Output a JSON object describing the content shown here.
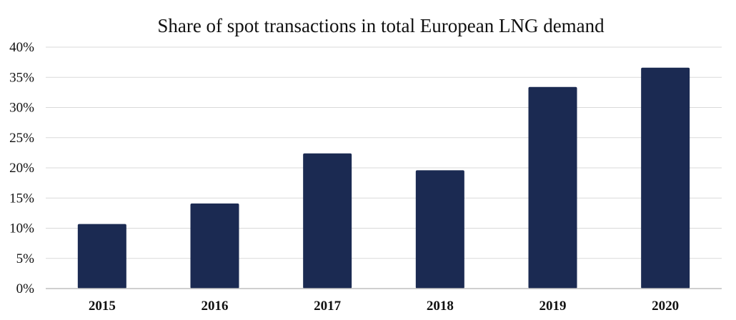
{
  "chart_data": {
    "type": "bar",
    "title": "Share of spot transactions in total European LNG demand",
    "xlabel": "",
    "ylabel": "",
    "categories": [
      "2015",
      "2016",
      "2017",
      "2018",
      "2019",
      "2020"
    ],
    "values": [
      0.107,
      0.141,
      0.224,
      0.196,
      0.334,
      0.366
    ],
    "ylim": [
      0,
      0.4
    ],
    "y_ticks": [
      "0%",
      "5%",
      "10%",
      "15%",
      "20%",
      "25%",
      "30%",
      "35%",
      "40%"
    ],
    "grid": true,
    "legend": "none",
    "colors": {
      "bar": "#1b2a52"
    }
  }
}
